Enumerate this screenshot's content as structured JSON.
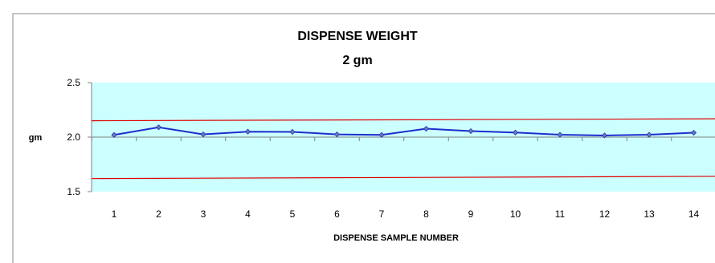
{
  "chart_data": {
    "type": "line",
    "title": "DISPENSE WEIGHT",
    "subtitle": "2 gm",
    "xlabel": "DISPENSE SAMPLE NUMBER",
    "ylabel": "gm",
    "categories": [
      "1",
      "2",
      "3",
      "4",
      "5",
      "6",
      "7",
      "8",
      "9",
      "10",
      "11",
      "12",
      "13",
      "14"
    ],
    "series": [
      {
        "values": [
          2.02,
          2.09,
          2.025,
          2.05,
          2.048,
          2.025,
          2.02,
          2.077,
          2.055,
          2.042,
          2.022,
          2.015,
          2.022,
          2.04
        ],
        "color": "#1f2ccc"
      }
    ],
    "limit_lines": [
      {
        "start": 2.15,
        "end": 2.168,
        "color": "#e00000"
      },
      {
        "start": 1.62,
        "end": 1.64,
        "color": "#e00000"
      }
    ],
    "ylim": [
      1.5,
      2.5
    ],
    "yticks": [
      "1.5",
      "2.0",
      "2.5"
    ],
    "plot_background": "#ccffff",
    "grid": false,
    "legend": "none"
  }
}
